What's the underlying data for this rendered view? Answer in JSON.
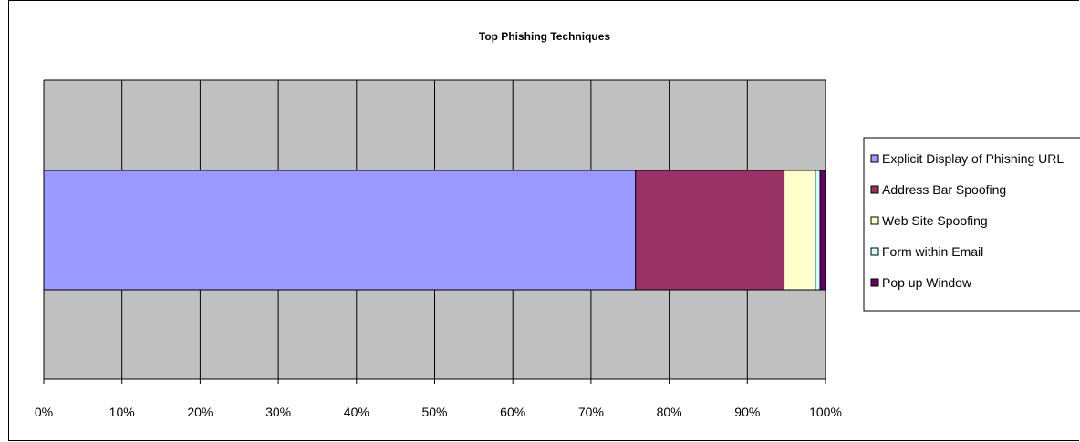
{
  "chart_data": {
    "type": "bar",
    "orientation": "horizontal",
    "stacked": "percent",
    "title": "Top Phishing Techniques",
    "xlabel": "",
    "ylabel": "",
    "xlim": [
      0,
      100
    ],
    "x_ticks": [
      "0%",
      "10%",
      "20%",
      "30%",
      "40%",
      "50%",
      "60%",
      "70%",
      "80%",
      "90%",
      "100%"
    ],
    "grid": true,
    "legend_position": "right",
    "plot_background": "#c0c0c0",
    "series": [
      {
        "name": "Explicit Display of Phishing URL",
        "value": 75.7,
        "color": "#9999ff"
      },
      {
        "name": "Address Bar Spoofing",
        "value": 19.0,
        "color": "#993366"
      },
      {
        "name": "Web Site Spoofing",
        "value": 4.0,
        "color": "#ffffcc"
      },
      {
        "name": "Form within Email",
        "value": 0.6,
        "color": "#ccffff"
      },
      {
        "name": "Pop up Window",
        "value": 0.7,
        "color": "#660066"
      }
    ]
  }
}
